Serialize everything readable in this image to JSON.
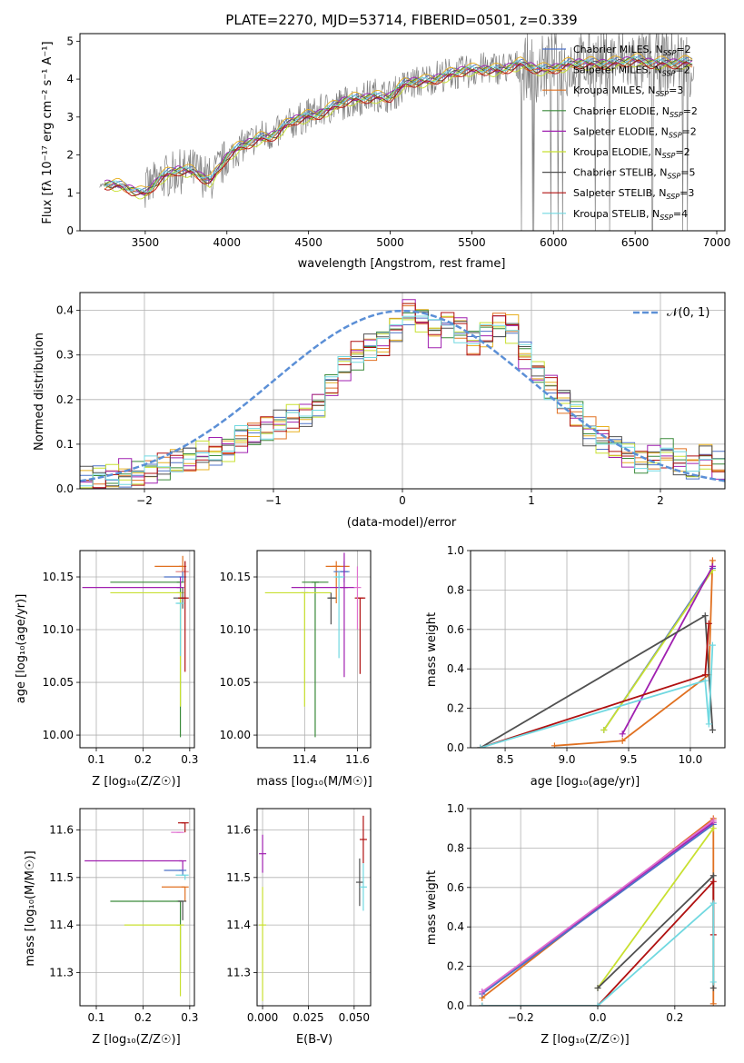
{
  "title": "PLATE=2270, MJD=53714, FIBERID=0501, z=0.339",
  "colors": {
    "chabrier_miles": "#4c72c8",
    "salpeter_miles": "#e8b020",
    "kroupa_miles": "#e07020",
    "chabrier_elodie": "#3a8a3a",
    "salpeter_elodie": "#a020b0",
    "kroupa_elodie": "#c8e030",
    "chabrier_stelib": "#505050",
    "salpeter_stelib": "#b01010",
    "kroupa_stelib": "#70d8e0",
    "data": "#808080",
    "gauss": "#5b8fd6",
    "salmon": "#e08080",
    "pink": "#e070d0"
  },
  "spectrum": {
    "xlabel": "wavelength [Angstrom, rest frame]",
    "ylabel": "Flux [fλ 10⁻¹⁷ erg cm⁻² s⁻¹ A⁻¹]",
    "xlim": [
      3100,
      7050
    ],
    "ylim": [
      0,
      5.2
    ],
    "xticks": [
      "3500",
      "4000",
      "4500",
      "5000",
      "5500",
      "6000",
      "6500",
      "7000"
    ],
    "yticks": [
      "0",
      "1",
      "2",
      "3",
      "4",
      "5"
    ],
    "legend": [
      {
        "key": "chabrier_miles",
        "label": "Chabrier MILES, N",
        "sub": "SSP",
        "suffix": "=2"
      },
      {
        "key": "salpeter_miles",
        "label": "Salpeter MILES, N",
        "sub": "SSP",
        "suffix": "=2"
      },
      {
        "key": "kroupa_miles",
        "label": "Kroupa MILES, N",
        "sub": "SSP",
        "suffix": "=3"
      },
      {
        "key": "chabrier_elodie",
        "label": "Chabrier ELODIE, N",
        "sub": "SSP",
        "suffix": "=2"
      },
      {
        "key": "salpeter_elodie",
        "label": "Salpeter ELODIE, N",
        "sub": "SSP",
        "suffix": "=2"
      },
      {
        "key": "kroupa_elodie",
        "label": "Kroupa ELODIE, N",
        "sub": "SSP",
        "suffix": "=2"
      },
      {
        "key": "chabrier_stelib",
        "label": "Chabrier STELIB, N",
        "sub": "SSP",
        "suffix": "=5"
      },
      {
        "key": "salpeter_stelib",
        "label": "Salpeter STELIB, N",
        "sub": "SSP",
        "suffix": "=3"
      },
      {
        "key": "kroupa_stelib",
        "label": "Kroupa STELIB, N",
        "sub": "SSP",
        "suffix": "=4"
      }
    ]
  },
  "histogram": {
    "xlabel": "(data-model)/error",
    "ylabel": "Normed distribution",
    "legend": "𝒩(0, 1)",
    "xlim": [
      -2.5,
      2.5
    ],
    "ylim": [
      0,
      0.44
    ],
    "xticks": [
      "−2",
      "−1",
      "0",
      "1",
      "2"
    ],
    "yticks": [
      "0.0",
      "0.1",
      "0.2",
      "0.3",
      "0.4"
    ]
  },
  "panels": {
    "age_z": {
      "xlabel": "Z [log₁₀(Z/Z☉)]",
      "ylabel": "age  [log₁₀(age/yr)]",
      "xticks": [
        "0.1",
        "0.2",
        "0.3"
      ],
      "yticks": [
        "10.00",
        "10.05",
        "10.10",
        "10.15"
      ]
    },
    "age_mass": {
      "xlabel": "mass [log₁₀(M/M☉)]",
      "xticks": [
        "11.4",
        "11.6"
      ],
      "yticks": [
        "10.00",
        "10.05",
        "10.10",
        "10.15"
      ]
    },
    "mw_age": {
      "xlabel": "age  [log₁₀(age/yr)]",
      "ylabel": "mass weight",
      "xticks": [
        "8.5",
        "9.0",
        "9.5",
        "10.0"
      ],
      "yticks": [
        "0.0",
        "0.2",
        "0.4",
        "0.6",
        "0.8",
        "1.0"
      ]
    },
    "mass_z": {
      "xlabel": "Z [log₁₀(Z/Z☉)]",
      "ylabel": "mass [log₁₀(M/M☉)]",
      "xticks": [
        "0.1",
        "0.2",
        "0.3"
      ],
      "yticks": [
        "11.3",
        "11.4",
        "11.5",
        "11.6"
      ]
    },
    "mass_ebv": {
      "xlabel": "E(B-V)",
      "xticks": [
        "0.000",
        "0.025",
        "0.050"
      ],
      "yticks": [
        "11.3",
        "11.4",
        "11.5",
        "11.6"
      ]
    },
    "mw_z": {
      "xlabel": "Z [log₁₀(Z/Z☉)]",
      "ylabel": "mass weight",
      "xticks": [
        "−0.2",
        "0.0",
        "0.2"
      ],
      "yticks": [
        "0.0",
        "0.2",
        "0.4",
        "0.6",
        "0.8",
        "1.0"
      ]
    }
  },
  "chart_data": [
    {
      "type": "line",
      "title": "PLATE=2270, MJD=53714, FIBERID=0501, z=0.339",
      "xlabel": "wavelength [Angstrom, rest frame]",
      "ylabel": "Flux [fλ 10⁻¹⁷ erg cm⁻² s⁻¹ A⁻¹]",
      "xlim": [
        3100,
        7050
      ],
      "ylim": [
        0,
        5.2
      ],
      "grid": false,
      "legend_position": "right",
      "model_x": [
        3250,
        3500,
        3600,
        3700,
        3800,
        3900,
        4000,
        4100,
        4200,
        4300,
        4400,
        4500,
        4600,
        4700,
        4800,
        4900,
        5000,
        5100,
        5200,
        5300,
        5400,
        5500,
        5600,
        5700,
        5800,
        5900,
        6000,
        6100,
        6200,
        6300,
        6400,
        6500,
        6600,
        6700,
        6800,
        6850
      ],
      "model_y": [
        1.2,
        1.05,
        1.4,
        1.55,
        1.6,
        1.35,
        1.9,
        2.25,
        2.5,
        2.55,
        2.85,
        3.05,
        3.2,
        3.35,
        3.45,
        3.6,
        3.55,
        3.85,
        3.95,
        4.1,
        4.15,
        4.2,
        4.3,
        4.3,
        4.35,
        4.25,
        4.35,
        4.4,
        4.35,
        4.45,
        4.5,
        4.45,
        4.4,
        4.5,
        4.45,
        4.4
      ],
      "series": [
        {
          "name": "Chabrier MILES, NSSP=2",
          "offset": 0.05
        },
        {
          "name": "Salpeter MILES, NSSP=2",
          "offset": 0.1
        },
        {
          "name": "Kroupa MILES, NSSP=3",
          "offset": -0.05
        },
        {
          "name": "Chabrier ELODIE, NSSP=2",
          "offset": 0.0
        },
        {
          "name": "Salpeter ELODIE, NSSP=2",
          "offset": 0.03
        },
        {
          "name": "Kroupa ELODIE, NSSP=2",
          "offset": -0.1
        },
        {
          "name": "Chabrier STELIB, NSSP=5",
          "offset": -0.02
        },
        {
          "name": "Salpeter STELIB, NSSP=3",
          "offset": -0.08
        },
        {
          "name": "Kroupa STELIB, NSSP=4",
          "offset": 0.02
        }
      ]
    },
    {
      "type": "bar",
      "xlabel": "(data-model)/error",
      "ylabel": "Normed distribution",
      "xlim": [
        -2.5,
        2.5
      ],
      "ylim": [
        0,
        0.44
      ],
      "grid": true,
      "legend_position": "top-right",
      "bin_edges_start": -2.5,
      "bin_width": 0.1,
      "values": [
        0.018,
        0.022,
        0.028,
        0.035,
        0.03,
        0.04,
        0.048,
        0.06,
        0.065,
        0.075,
        0.085,
        0.09,
        0.11,
        0.12,
        0.135,
        0.145,
        0.16,
        0.17,
        0.19,
        0.23,
        0.27,
        0.3,
        0.32,
        0.33,
        0.36,
        0.4,
        0.38,
        0.35,
        0.37,
        0.36,
        0.33,
        0.35,
        0.37,
        0.36,
        0.3,
        0.26,
        0.23,
        0.2,
        0.17,
        0.13,
        0.11,
        0.09,
        0.075,
        0.065,
        0.07,
        0.08,
        0.06,
        0.045,
        0.07,
        0.05
      ],
      "gaussian": {
        "name": "𝒩(0, 1)",
        "mean": 0,
        "sigma": 1
      }
    },
    {
      "type": "scatter",
      "xlabel": "Z [log₁₀(Z/Z☉)]",
      "ylabel": "age  [log₁₀(age/yr)]",
      "xlim": [
        0.065,
        0.31
      ],
      "ylim": [
        9.988,
        10.175
      ],
      "grid": true,
      "points": [
        {
          "x": 0.285,
          "y": 10.16,
          "xerr": [
            0.06,
            0.0
          ],
          "yerr": [
            0.01,
            0.01
          ],
          "c": "kroupa_miles"
        },
        {
          "x": 0.29,
          "y": 10.155,
          "xerr": [
            0.02,
            0.0
          ],
          "yerr": [
            0.01,
            0.01
          ],
          "c": "salmon"
        },
        {
          "x": 0.285,
          "y": 10.15,
          "xerr": [
            0.04,
            0.0
          ],
          "yerr": [
            0.005,
            0.005
          ],
          "c": "chabrier_miles"
        },
        {
          "x": 0.28,
          "y": 10.145,
          "xerr": [
            0.15,
            0.0
          ],
          "yerr": [
            0.147,
            0.0
          ],
          "c": "chabrier_elodie"
        },
        {
          "x": 0.28,
          "y": 10.14,
          "xerr": [
            0.21,
            0.0
          ],
          "yerr": [
            0.0,
            0.01
          ],
          "c": "salpeter_elodie"
        },
        {
          "x": 0.28,
          "y": 10.135,
          "xerr": [
            0.15,
            0.0
          ],
          "yerr": [
            0.108,
            0.0
          ],
          "c": "kroupa_elodie"
        },
        {
          "x": 0.285,
          "y": 10.13,
          "xerr": [
            0.02,
            0.0
          ],
          "yerr": [
            0.01,
            0.01
          ],
          "c": "chabrier_stelib"
        },
        {
          "x": 0.29,
          "y": 10.13,
          "xerr": [
            0.015,
            0.0
          ],
          "yerr": [
            0.07,
            0.035
          ],
          "c": "salpeter_stelib"
        },
        {
          "x": 0.28,
          "y": 10.125,
          "xerr": [
            0.01,
            0.0
          ],
          "yerr": [
            0.05,
            0.0
          ],
          "c": "kroupa_stelib"
        }
      ]
    },
    {
      "type": "scatter",
      "xlabel": "mass [log₁₀(M/M☉)]",
      "xlim": [
        11.22,
        11.65
      ],
      "ylim": [
        9.988,
        10.175
      ],
      "grid": true,
      "points": [
        {
          "x": 11.52,
          "y": 10.16,
          "xerr": [
            0.04,
            0.05
          ],
          "yerr": [
            0.035,
            0.005
          ],
          "c": "kroupa_miles"
        },
        {
          "x": 11.55,
          "y": 10.155,
          "xerr": [
            0.04,
            0.02
          ],
          "yerr": [
            0.01,
            0.01
          ],
          "c": "chabrier_miles"
        },
        {
          "x": 11.44,
          "y": 10.145,
          "xerr": [
            0.05,
            0.05
          ],
          "yerr": [
            0.147,
            0.0
          ],
          "c": "chabrier_elodie"
        },
        {
          "x": 11.55,
          "y": 10.14,
          "xerr": [
            0.2,
            0.04
          ],
          "yerr": [
            0.085,
            0.033
          ],
          "c": "salpeter_elodie"
        },
        {
          "x": 11.4,
          "y": 10.135,
          "xerr": [
            0.15,
            0.1
          ],
          "yerr": [
            0.108,
            0.0
          ],
          "c": "kroupa_elodie"
        },
        {
          "x": 11.5,
          "y": 10.13,
          "xerr": [
            0.01,
            0.02
          ],
          "yerr": [
            0.025,
            0.005
          ],
          "c": "chabrier_stelib"
        },
        {
          "x": 11.61,
          "y": 10.13,
          "xerr": [
            0.02,
            0.02
          ],
          "yerr": [
            0.072,
            0.0
          ],
          "c": "salpeter_stelib"
        },
        {
          "x": 11.53,
          "y": 10.15,
          "xerr": [
            0.02,
            0.02
          ],
          "yerr": [
            0.077,
            0.005
          ],
          "c": "kroupa_stelib"
        },
        {
          "x": 11.6,
          "y": 10.14,
          "xerr": [
            0.0,
            0.0
          ],
          "yerr": [
            0.04,
            0.02
          ],
          "c": "pink"
        }
      ]
    },
    {
      "type": "line",
      "xlabel": "age  [log₁₀(age/yr)]",
      "ylabel": "mass weight",
      "xlim": [
        8.22,
        10.28
      ],
      "ylim": [
        0,
        1.0
      ],
      "grid": true,
      "series": [
        {
          "c": "kroupa_miles",
          "x": [
            8.9,
            9.45,
            10.15,
            10.18
          ],
          "y": [
            0.01,
            0.035,
            0.37,
            0.95
          ]
        },
        {
          "c": "chabrier_miles",
          "x": [
            9.3,
            10.18
          ],
          "y": [
            0.09,
            0.91
          ]
        },
        {
          "c": "kroupa_elodie",
          "x": [
            9.3,
            10.18
          ],
          "y": [
            0.09,
            0.9
          ]
        },
        {
          "c": "salpeter_elodie",
          "x": [
            9.45,
            10.18
          ],
          "y": [
            0.07,
            0.92
          ]
        },
        {
          "c": "chabrier_stelib",
          "x": [
            8.3,
            10.12,
            10.18
          ],
          "y": [
            0.0,
            0.67,
            0.09
          ]
        },
        {
          "c": "salpeter_stelib",
          "x": [
            8.3,
            10.12,
            10.15
          ],
          "y": [
            0.0,
            0.37,
            0.63
          ]
        },
        {
          "c": "kroupa_stelib",
          "x": [
            8.3,
            10.12,
            10.15,
            10.18
          ],
          "y": [
            0.0,
            0.34,
            0.12,
            0.52
          ]
        }
      ]
    },
    {
      "type": "scatter",
      "xlabel": "Z [log₁₀(Z/Z☉)]",
      "ylabel": "mass [log₁₀(M/M☉)]",
      "xlim": [
        0.065,
        0.31
      ],
      "ylim": [
        11.23,
        11.645
      ],
      "grid": true,
      "points": [
        {
          "x": 0.29,
          "y": 11.615,
          "xerr": [
            0.015,
            0.0
          ],
          "yerr": [
            0.02,
            0.0
          ],
          "c": "salpeter_stelib"
        },
        {
          "x": 0.28,
          "y": 11.595,
          "xerr": [
            0.02,
            0.0
          ],
          "yerr": [
            0.0,
            0.0
          ],
          "c": "pink"
        },
        {
          "x": 0.285,
          "y": 11.535,
          "xerr": [
            0.21,
            0.0
          ],
          "yerr": [
            0.02,
            0.0
          ],
          "c": "salpeter_elodie"
        },
        {
          "x": 0.285,
          "y": 11.515,
          "xerr": [
            0.04,
            0.0
          ],
          "yerr": [
            0.01,
            0.0
          ],
          "c": "chabrier_miles"
        },
        {
          "x": 0.29,
          "y": 11.505,
          "xerr": [
            0.02,
            0.0
          ],
          "yerr": [
            0.01,
            0.0
          ],
          "c": "kroupa_stelib"
        },
        {
          "x": 0.29,
          "y": 11.48,
          "xerr": [
            0.05,
            0.0
          ],
          "yerr": [
            0.03,
            0.0
          ],
          "c": "kroupa_miles"
        },
        {
          "x": 0.28,
          "y": 11.45,
          "xerr": [
            0.15,
            0.0
          ],
          "yerr": [
            0.15,
            0.0
          ],
          "c": "chabrier_elodie"
        },
        {
          "x": 0.28,
          "y": 11.4,
          "xerr": [
            0.12,
            0.0
          ],
          "yerr": [
            0.15,
            0.0
          ],
          "c": "kroupa_elodie"
        },
        {
          "x": 0.285,
          "y": 11.45,
          "xerr": [
            0.01,
            0.0
          ],
          "yerr": [
            0.04,
            0.0
          ],
          "c": "chabrier_stelib"
        }
      ]
    },
    {
      "type": "scatter",
      "xlabel": "E(B-V)",
      "xlim": [
        -0.003,
        0.059
      ],
      "ylim": [
        11.23,
        11.645
      ],
      "grid": true,
      "points": [
        {
          "x": 0.0,
          "y": 11.55,
          "yerr": [
            0.04,
            0.04
          ],
          "c": "salpeter_elodie"
        },
        {
          "x": 0.0,
          "y": 11.4,
          "yerr": [
            0.16,
            0.08
          ],
          "c": "kroupa_elodie"
        },
        {
          "x": 0.053,
          "y": 11.49,
          "yerr": [
            0.05,
            0.05
          ],
          "c": "chabrier_stelib"
        },
        {
          "x": 0.055,
          "y": 11.58,
          "yerr": [
            0.05,
            0.05
          ],
          "c": "salpeter_stelib"
        },
        {
          "x": 0.055,
          "y": 11.48,
          "yerr": [
            0.05,
            0.05
          ],
          "c": "kroupa_stelib"
        }
      ]
    },
    {
      "type": "line",
      "xlabel": "Z [log₁₀(Z/Z☉)]",
      "ylabel": "mass weight",
      "xlim": [
        -0.33,
        0.33
      ],
      "ylim": [
        0,
        1.0
      ],
      "grid": true,
      "series": [
        {
          "c": "kroupa_miles",
          "x": [
            -0.3,
            0.3,
            0.3
          ],
          "y": [
            0.04,
            0.95,
            0.01
          ]
        },
        {
          "c": "chabrier_miles",
          "x": [
            -0.3,
            0.3
          ],
          "y": [
            0.06,
            0.92
          ]
        },
        {
          "c": "salpeter_elodie",
          "x": [
            -0.3,
            0.3
          ],
          "y": [
            0.07,
            0.93
          ]
        },
        {
          "c": "pink",
          "x": [
            -0.3,
            0.3
          ],
          "y": [
            0.07,
            0.94
          ]
        },
        {
          "c": "kroupa_elodie",
          "x": [
            0.0,
            0.3
          ],
          "y": [
            0.09,
            0.9
          ]
        },
        {
          "c": "chabrier_stelib",
          "x": [
            0.0,
            0.3,
            0.3
          ],
          "y": [
            0.09,
            0.66,
            0.09
          ]
        },
        {
          "c": "salpeter_stelib",
          "x": [
            -0.3,
            0.0,
            0.3,
            0.3
          ],
          "y": [
            0.0,
            0.0,
            0.63,
            0.36
          ]
        },
        {
          "c": "kroupa_stelib",
          "x": [
            -0.3,
            0.0,
            0.3,
            0.3
          ],
          "y": [
            0.0,
            0.0,
            0.52,
            0.12
          ]
        }
      ]
    }
  ]
}
